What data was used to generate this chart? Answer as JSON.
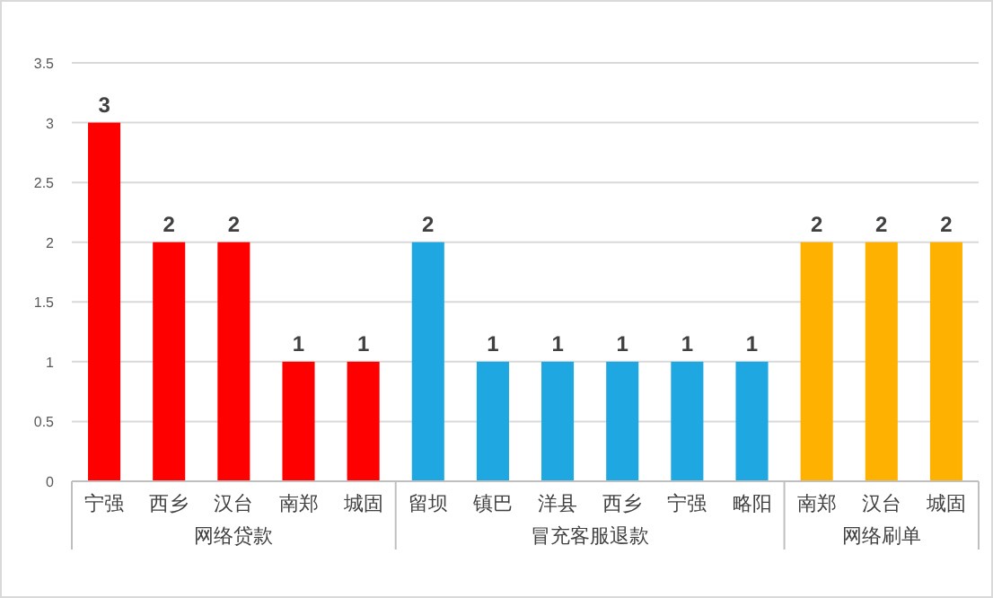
{
  "chart_data": {
    "type": "bar",
    "categories": [
      "宁强",
      "西乡",
      "汉台",
      "南郑",
      "城固",
      "留坝",
      "镇巴",
      "洋县",
      "西乡",
      "宁强",
      "略阳",
      "南郑",
      "汉台",
      "城固"
    ],
    "series": [
      {
        "name": "网络贷款",
        "color": "#ff0000",
        "values": [
          3,
          2,
          2,
          1,
          1,
          null,
          null,
          null,
          null,
          null,
          null,
          null,
          null,
          null
        ]
      },
      {
        "name": "冒充客服退款",
        "color": "#1ea7e1",
        "values": [
          null,
          null,
          null,
          null,
          null,
          2,
          1,
          1,
          1,
          1,
          1,
          null,
          null,
          null
        ]
      },
      {
        "name": "网络刷单",
        "color": "#ffb100",
        "values": [
          null,
          null,
          null,
          null,
          null,
          null,
          null,
          null,
          null,
          null,
          null,
          2,
          2,
          2
        ]
      }
    ],
    "ylim": [
      0,
      3.5
    ],
    "yticks": [
      0,
      0.5,
      1,
      1.5,
      2,
      2.5,
      3,
      3.5
    ],
    "grid": "y",
    "data_labels": true
  }
}
